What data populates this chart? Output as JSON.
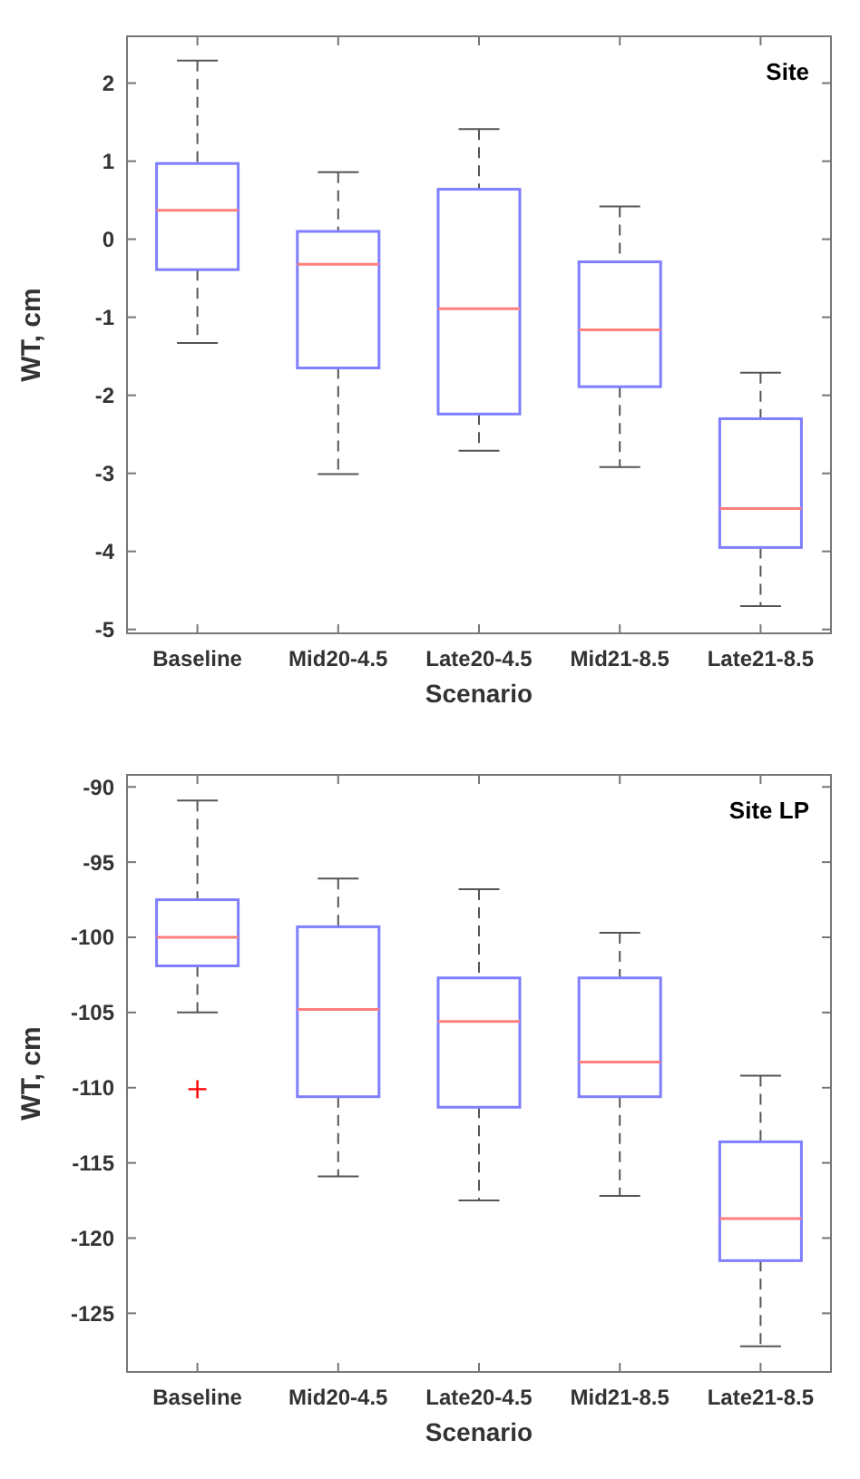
{
  "chart_data": [
    {
      "type": "box",
      "annotations": [
        "Site"
      ],
      "xlabel": "Scenario",
      "ylabel": "WT, cm",
      "categories": [
        "Baseline",
        "Mid20-4.5",
        "Late20-4.5",
        "Mid21-8.5",
        "Late21-8.5"
      ],
      "ylim": [
        -5.05,
        2.6
      ],
      "yticks": [
        -5,
        -4,
        -3,
        -2,
        -1,
        0,
        1,
        2
      ],
      "grid": false,
      "series": [
        {
          "color": "#7f7fff",
          "boxes": [
            {
              "low": -1.33,
              "q1": -0.39,
              "median": 0.37,
              "q3": 0.97,
              "high": 2.29
            },
            {
              "low": -3.01,
              "q1": -1.65,
              "median": -0.32,
              "q3": 0.1,
              "high": 0.86
            },
            {
              "low": -2.71,
              "q1": -2.24,
              "median": -0.89,
              "q3": 0.64,
              "high": 1.41
            },
            {
              "low": -2.92,
              "q1": -1.89,
              "median": -1.16,
              "q3": -0.29,
              "high": 0.42
            },
            {
              "low": -4.7,
              "q1": -3.95,
              "median": -3.45,
              "q3": -2.3,
              "high": -1.71
            }
          ]
        }
      ]
    },
    {
      "type": "box",
      "annotations": [
        "Site LP"
      ],
      "xlabel": "Scenario",
      "ylabel": "WT, cm",
      "categories": [
        "Baseline",
        "Mid20-4.5",
        "Late20-4.5",
        "Mid21-8.5",
        "Late21-8.5"
      ],
      "ylim": [
        -128.9,
        -89.2
      ],
      "yticks": [
        -125,
        -120,
        -115,
        -110,
        -105,
        -100,
        -95,
        -90
      ],
      "grid": false,
      "series": [
        {
          "color": "#7f7fff",
          "boxes": [
            {
              "low": -105,
              "q1": -101.9,
              "median": -100,
              "q3": -97.5,
              "high": -90.9,
              "outliers": [
                -110.1
              ]
            },
            {
              "low": -115.9,
              "q1": -110.6,
              "median": -104.8,
              "q3": -99.3,
              "high": -96.1
            },
            {
              "low": -117.5,
              "q1": -111.3,
              "median": -105.6,
              "q3": -102.7,
              "high": -96.8
            },
            {
              "low": -117.2,
              "q1": -110.6,
              "median": -108.3,
              "q3": -102.7,
              "high": -99.7
            },
            {
              "low": -127.2,
              "q1": -121.5,
              "median": -118.7,
              "q3": -113.6,
              "high": -109.2
            }
          ]
        }
      ]
    }
  ]
}
